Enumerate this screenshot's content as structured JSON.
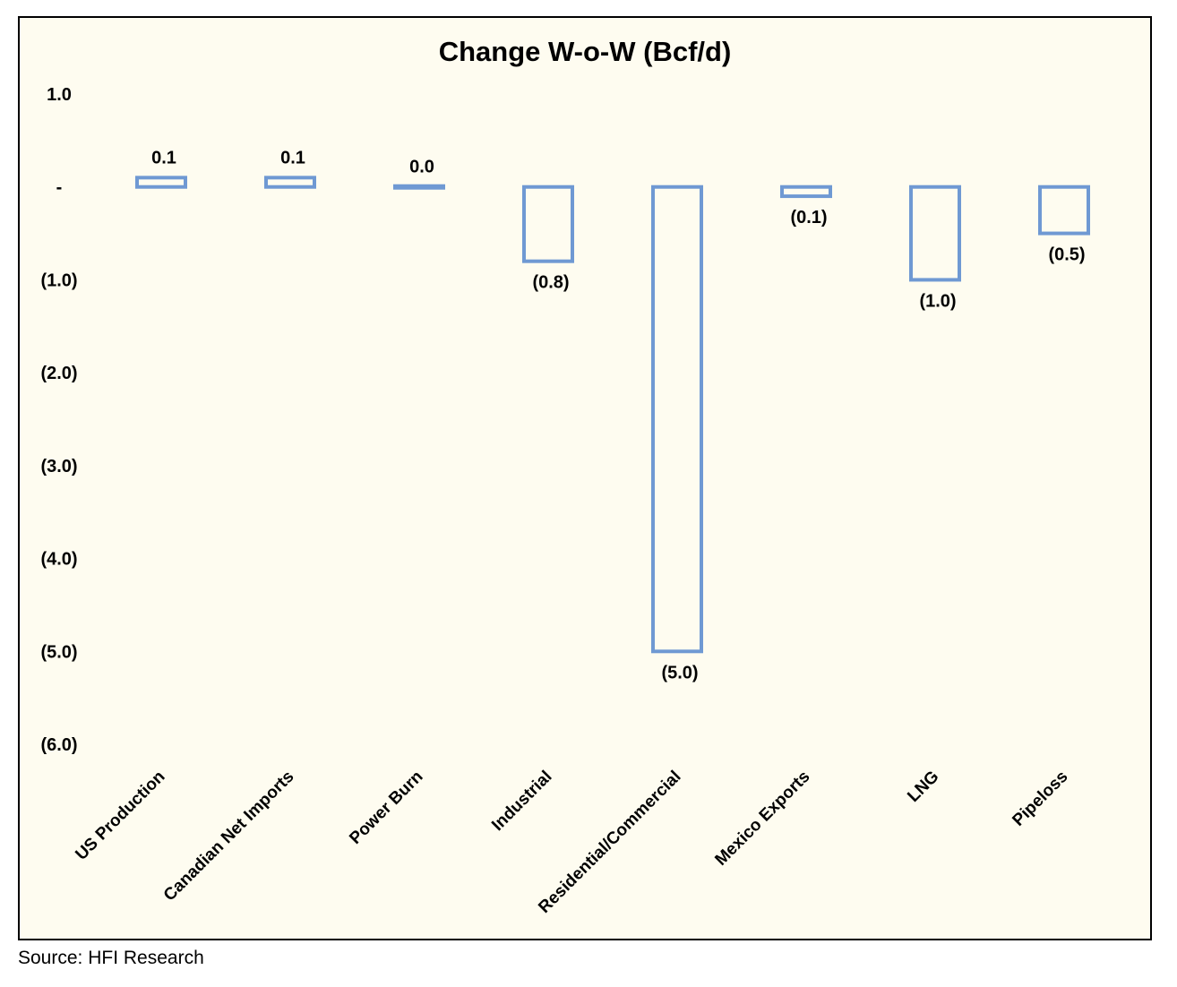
{
  "source_text": "Source: HFI Research",
  "colors": {
    "background": "#fefcf0",
    "bar_stroke": "#6f99d3"
  },
  "chart_data": {
    "type": "bar",
    "title": "Change W-o-W (Bcf/d)",
    "xlabel": "",
    "ylabel": "",
    "ylim": [
      -6.0,
      1.0
    ],
    "grid": false,
    "legend": "none",
    "yticks": [
      1.0,
      0.0,
      -1.0,
      -2.0,
      -3.0,
      -4.0,
      -5.0,
      -6.0
    ],
    "ytick_labels": [
      "1.0",
      "-",
      "(1.0)",
      "(2.0)",
      "(3.0)",
      "(4.0)",
      "(5.0)",
      "(6.0)"
    ],
    "categories": [
      "US Production",
      "Canadian Net Imports",
      "Power Burn",
      "Industrial",
      "Residential/Commercial",
      "Mexico Exports",
      "LNG",
      "Pipeloss"
    ],
    "values": [
      0.1,
      0.1,
      0.0,
      -0.8,
      -5.0,
      -0.1,
      -1.0,
      -0.5
    ],
    "data_labels": [
      "0.1",
      "0.1",
      "0.0",
      "(0.8)",
      "(5.0)",
      "(0.1)",
      "(1.0)",
      "(0.5)"
    ]
  }
}
